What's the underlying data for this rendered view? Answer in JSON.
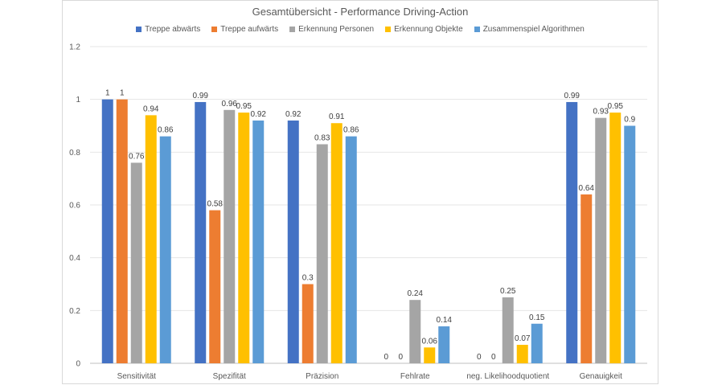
{
  "chart_data": {
    "type": "bar",
    "title": "Gesamtübersicht - Performance Driving-Action",
    "xlabel": "",
    "ylabel": "",
    "ylim": [
      0,
      1.2
    ],
    "yticks": [
      0,
      0.2,
      0.4,
      0.6,
      0.8,
      1,
      1.2
    ],
    "grid": true,
    "legend_position": "top",
    "categories": [
      "Sensitivität",
      "Spezifität",
      "Präzision",
      "Fehlrate",
      "neg. Likelihoodquotient",
      "Genauigkeit"
    ],
    "series": [
      {
        "name": "Treppe abwärts",
        "color": "#4472c4",
        "values": [
          1,
          0.99,
          0.92,
          0,
          0,
          0.99
        ]
      },
      {
        "name": "Treppe aufwärts",
        "color": "#ed7d31",
        "values": [
          1,
          0.58,
          0.3,
          0,
          0,
          0.64
        ]
      },
      {
        "name": "Erkennung Personen",
        "color": "#a5a5a5",
        "values": [
          0.76,
          0.96,
          0.83,
          0.24,
          0.25,
          0.93
        ]
      },
      {
        "name": "Erkennung Objekte",
        "color": "#ffc000",
        "values": [
          0.94,
          0.95,
          0.91,
          0.06,
          0.07,
          0.95
        ]
      },
      {
        "name": "Zusammenspiel Algorithmen",
        "color": "#5b9bd5",
        "values": [
          0.86,
          0.92,
          0.86,
          0.14,
          0.15,
          0.9
        ]
      }
    ]
  }
}
